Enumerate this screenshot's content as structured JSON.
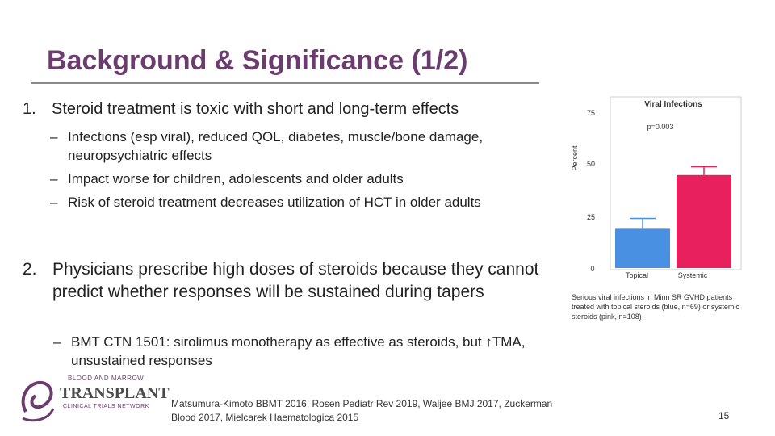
{
  "slide": {
    "title": "Background & Significance (1/2)",
    "point1": {
      "num": "1.",
      "text": "Steroid treatment is toxic with short and long-term effects"
    },
    "point1_subs": [
      "Infections (esp viral), reduced QOL, diabetes, muscle/bone damage, neuropsychiatric effects",
      "Impact worse for children, adolescents and older adults",
      "Risk of steroid treatment decreases utilization of HCT in older adults"
    ],
    "point2": {
      "num": "2.",
      "text": "Physicians prescribe high doses of steroids because they cannot predict whether responses will be sustained during tapers"
    },
    "point2_sub": "BMT CTN 1501: sirolimus monotherapy as effective as steroids, but ↑TMA, unsustained responses",
    "logo": {
      "top": "BLOOD AND MARROW",
      "main": "TRANSPLANT",
      "sub": "CLINICAL TRIALS NETWORK"
    },
    "references": "Matsumura-Kimoto BBMT 2016, Rosen Pediatr Rev 2019, Waljee BMJ 2017, Zuckerman Blood 2017, Mielcarek Haematologica 2015",
    "page_number": "15"
  },
  "chart_data": {
    "type": "bar",
    "title": "Viral Infections",
    "annotation": "p=0.003",
    "ylabel": "Percent",
    "xlabel": "",
    "ylim": [
      0,
      75
    ],
    "yticks": [
      "0",
      "25",
      "50",
      "75"
    ],
    "categories": [
      "Topical",
      "Systemic"
    ],
    "values": [
      19,
      45
    ],
    "errors": [
      5,
      4
    ],
    "colors": [
      "#4a90e2",
      "#e8205d"
    ],
    "caption": "Serious viral infections in Minn SR GVHD patients treated with topical steroids (blue, n=69) or systemic steroids (pink, n=108)"
  }
}
